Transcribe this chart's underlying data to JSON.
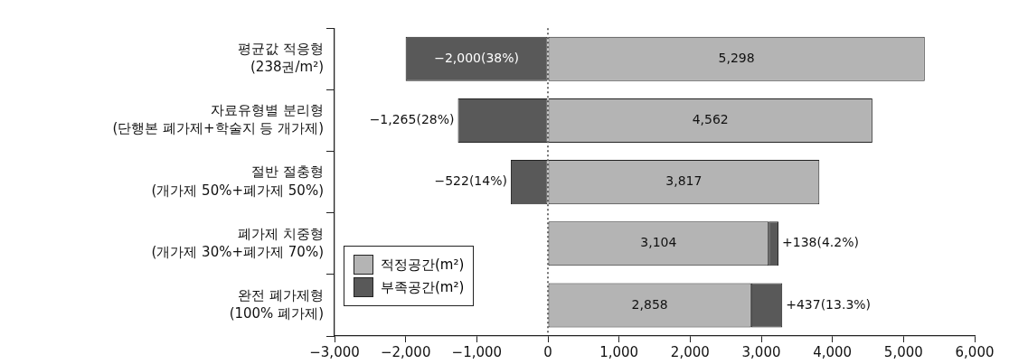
{
  "chart_data": {
    "type": "bar",
    "orientation": "horizontal",
    "stacked": true,
    "categories": [
      "평균값 적응형\n(238권/m²)",
      "자료유형별 분리형\n(단행본 폐가제+학술지 등 개가제)",
      "절반 절충형\n(개가제 50%+폐가제 50%)",
      "폐가제 치중형\n(개가제 30%+폐가제 70%)",
      "완전 폐가제형\n(100% 폐가제)"
    ],
    "series": [
      {
        "name": "적정공간(m²)",
        "color": "#b4b4b4",
        "values": [
          5298,
          4562,
          3817,
          3104,
          2858
        ],
        "value_labels": [
          "5,298",
          "4,562",
          "3,817",
          "3,104",
          "2,858"
        ]
      },
      {
        "name": "부족공간(m²)",
        "color": "#595959",
        "values": [
          -2000,
          -1265,
          -522,
          138,
          437
        ],
        "value_labels": [
          "−2,000(38%)",
          "−1,265(28%)",
          "−522(14%)",
          "+138(4.2%)",
          "+437(13.3%)"
        ]
      }
    ],
    "xlim": [
      -3000,
      6000
    ],
    "xticks": [
      {
        "value": -3000,
        "label": "−3,000"
      },
      {
        "value": -2000,
        "label": "−2,000"
      },
      {
        "value": -1000,
        "label": "−1,000"
      },
      0,
      {
        "value": 1000,
        "label": "1,000"
      },
      {
        "value": 2000,
        "label": "2,000"
      },
      {
        "value": 3000,
        "label": "3,000"
      },
      {
        "value": 4000,
        "label": "4,000"
      },
      {
        "value": 5000,
        "label": "5,000"
      },
      {
        "value": 6000,
        "label": "6,000"
      }
    ],
    "ref_lines": [
      {
        "axis": "x",
        "value": 0,
        "line_style": "dotted",
        "color": "#222222"
      }
    ],
    "legend": "bottom left",
    "grid": false
  }
}
